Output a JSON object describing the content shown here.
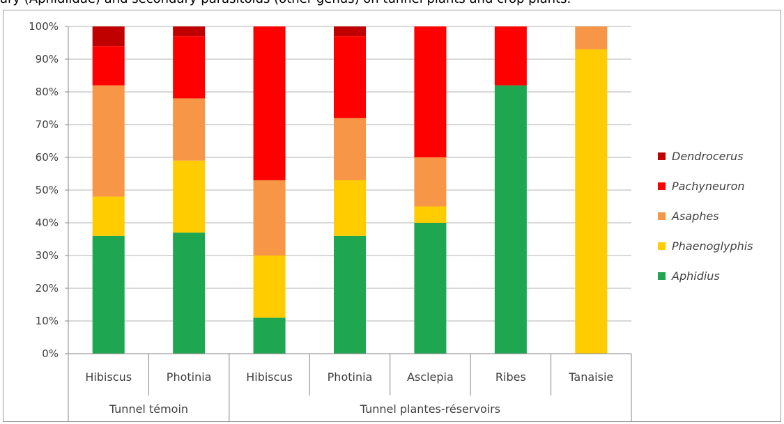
{
  "caption": "ary (Aphidiidae) and secondary parasitoids (other genus) on tunnel plants and crop plants.",
  "chart_data": {
    "type": "bar",
    "stacked": true,
    "percent": true,
    "groups": [
      {
        "label": "Tunnel témoin",
        "categories": [
          "Hibiscus",
          "Photinia"
        ]
      },
      {
        "label": "Tunnel plantes-réservoirs",
        "categories": [
          "Hibiscus",
          "Photinia",
          "Asclepia",
          "Ribes",
          "Tanaisie"
        ]
      }
    ],
    "categories": [
      "Hibiscus",
      "Photinia",
      "Hibiscus",
      "Photinia",
      "Asclepia",
      "Ribes",
      "Tanaisie"
    ],
    "series": [
      {
        "name": "Aphidius",
        "color": "#1fa651",
        "values": [
          36,
          37,
          11,
          36,
          40,
          82,
          0
        ]
      },
      {
        "name": "Phaenoglyphis",
        "color": "#ffcc00",
        "values": [
          12,
          22,
          19,
          17,
          5,
          0,
          93
        ]
      },
      {
        "name": "Asaphes",
        "color": "#f79646",
        "values": [
          34,
          19,
          23,
          19,
          15,
          0,
          7
        ]
      },
      {
        "name": "Pachyneuron",
        "color": "#ff0000",
        "values": [
          12,
          19,
          47,
          25,
          40,
          18,
          0
        ]
      },
      {
        "name": "Dendrocerus",
        "color": "#c00000",
        "values": [
          6,
          3,
          0,
          3,
          0,
          0,
          0
        ]
      }
    ],
    "ylim": [
      0,
      100
    ],
    "yticks": [
      "0%",
      "10%",
      "20%",
      "30%",
      "40%",
      "50%",
      "60%",
      "70%",
      "80%",
      "90%",
      "100%"
    ],
    "grid": true,
    "legend": "right"
  }
}
